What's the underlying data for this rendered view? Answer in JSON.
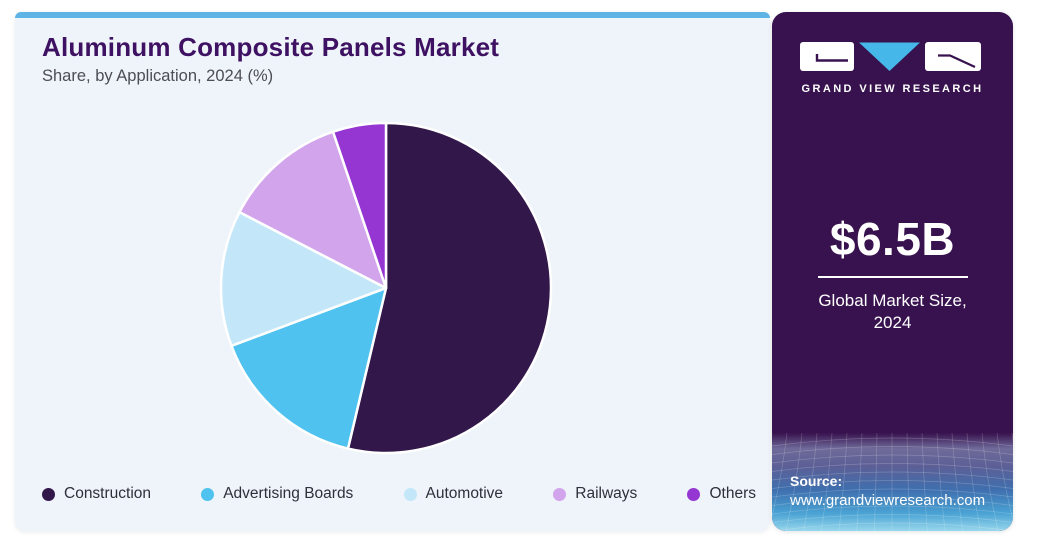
{
  "header": {
    "title": "Aluminum Composite Panels Market",
    "subtitle": "Share, by Application, 2024 (%)"
  },
  "chart_data": {
    "type": "pie",
    "title": "Aluminum Composite Panels Market",
    "subtitle": "Share, by Application, 2024 (%)",
    "unit": "%",
    "start_angle_deg": 0,
    "direction": "clockwise",
    "categories": [
      "Construction",
      "Advertising Boards",
      "Automotive",
      "Railways",
      "Others"
    ],
    "values": [
      53.7,
      15.6,
      13.3,
      12.2,
      5.2
    ],
    "colors": [
      "#32174a",
      "#4fc2f0",
      "#c3e7f9",
      "#d2a4ec",
      "#9636d2"
    ],
    "legend_position": "bottom",
    "slice_border_color": "#ffffff"
  },
  "theme": {
    "accent_bar_color": "#5db4e5",
    "card_background": "#eef4f9",
    "sidebar_background": "#38124e",
    "title_color": "#3e1163"
  },
  "sidebar": {
    "brand": {
      "name": "GRAND VIEW RESEARCH",
      "logo_letters": [
        "G",
        "V",
        "R"
      ],
      "triangle_color": "#45b7e8"
    },
    "market_size": {
      "value": "$6.5B",
      "label_line1": "Global Market Size,",
      "label_line2": "2024"
    },
    "source": {
      "label": "Source:",
      "url": "www.grandviewresearch.com"
    }
  }
}
